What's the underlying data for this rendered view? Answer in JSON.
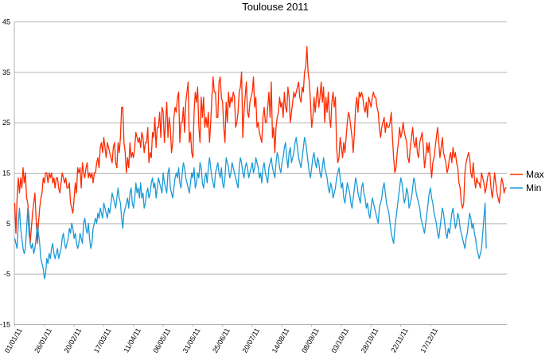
{
  "chart_data": {
    "type": "line",
    "title": "Toulouse  2011",
    "xlabel": "",
    "ylabel": "",
    "ylim": [
      -15,
      45
    ],
    "yticks": [
      -15,
      -5,
      5,
      15,
      25,
      35,
      45
    ],
    "x_start": "01/01/11",
    "x_tick_labels": [
      "01/01/11",
      "26/01/11",
      "20/02/11",
      "17/03/11",
      "11/04/11",
      "06/05/11",
      "31/05/11",
      "25/06/11",
      "20/07/11",
      "14/08/11",
      "08/09/11",
      "03/10/11",
      "28/10/11",
      "22/11/11",
      "17/12/11"
    ],
    "grid": "horizontal",
    "legend_position": "right",
    "series": [
      {
        "name": "Max",
        "color": "#ff2a00",
        "values": [
          9,
          3,
          10,
          14,
          11,
          14,
          12,
          16,
          13,
          15,
          10,
          9,
          6,
          1,
          4,
          7,
          9,
          11,
          6,
          1,
          5,
          8,
          10,
          11,
          14,
          13,
          15,
          15,
          13,
          15,
          14,
          15,
          13,
          14,
          12,
          14,
          14,
          12,
          11,
          13,
          15,
          14,
          13,
          14,
          12,
          12,
          13,
          9,
          8,
          7,
          10,
          13,
          11,
          16,
          15,
          16,
          12,
          17,
          15,
          14,
          16,
          17,
          14,
          15,
          14,
          15,
          13,
          15,
          15,
          17,
          18,
          16,
          20,
          21,
          19,
          22,
          20,
          18,
          21,
          20,
          19,
          18,
          17,
          20,
          21,
          17,
          16,
          21,
          19,
          22,
          28,
          28,
          21,
          19,
          15,
          18,
          16,
          21,
          18,
          19,
          18,
          20,
          23,
          22,
          21,
          22,
          20,
          23,
          22,
          19,
          21,
          21,
          24,
          17,
          19,
          18,
          23,
          22,
          26,
          20,
          24,
          24,
          27,
          22,
          28,
          27,
          21,
          25,
          29,
          22,
          26,
          24,
          19,
          21,
          26,
          28,
          27,
          30,
          31,
          21,
          25,
          25,
          28,
          23,
          29,
          31,
          33,
          21,
          23,
          19,
          18,
          27,
          31,
          29,
          32,
          24,
          21,
          30,
          26,
          30,
          24,
          26,
          24,
          27,
          21,
          25,
          30,
          34,
          31,
          31,
          26,
          26,
          33,
          34,
          30,
          29,
          24,
          21,
          29,
          25,
          31,
          28,
          30,
          29,
          31,
          30,
          24,
          25,
          27,
          31,
          32,
          35,
          22,
          27,
          30,
          33,
          27,
          26,
          29,
          30,
          31,
          34,
          28,
          30,
          24,
          25,
          23,
          22,
          21,
          26,
          28,
          25,
          25,
          28,
          31,
          26,
          33,
          22,
          24,
          19,
          24,
          26,
          27,
          30,
          28,
          29,
          26,
          31,
          28,
          27,
          32,
          30,
          25,
          27,
          29,
          31,
          30,
          31,
          32,
          33,
          30,
          29,
          32,
          31,
          35,
          36,
          40,
          35,
          33,
          29,
          24,
          26,
          30,
          27,
          30,
          32,
          28,
          30,
          33,
          29,
          32,
          25,
          30,
          27,
          31,
          26,
          24,
          29,
          31,
          28,
          30,
          20,
          17,
          18,
          22,
          20,
          18,
          21,
          19,
          22,
          25,
          27,
          26,
          24,
          22,
          19,
          23,
          28,
          30,
          27,
          31,
          30,
          31,
          30,
          28,
          27,
          29,
          26,
          30,
          29,
          28,
          30,
          31,
          30,
          30,
          28,
          27,
          24,
          22,
          24,
          25,
          26,
          23,
          25,
          24,
          24,
          25,
          27,
          22,
          18,
          15,
          16,
          19,
          21,
          24,
          22,
          23,
          25,
          23,
          22,
          21,
          18,
          17,
          20,
          22,
          24,
          21,
          20,
          22,
          19,
          18,
          21,
          22,
          23,
          20,
          16,
          18,
          21,
          19,
          21,
          17,
          14,
          17,
          18,
          20,
          22,
          24,
          21,
          18,
          20,
          22,
          19,
          18,
          17,
          15,
          16,
          18,
          19,
          17,
          20,
          18,
          19,
          17,
          16,
          13,
          12,
          9,
          8,
          9,
          15,
          17,
          18,
          19,
          18,
          15,
          14,
          17,
          14,
          12,
          14,
          13,
          13,
          12,
          15,
          14,
          13,
          11,
          12,
          14,
          15,
          15,
          12,
          10,
          12,
          15,
          13,
          11,
          10,
          9,
          12,
          14,
          13,
          11,
          12,
          12
        ]
      },
      {
        "name": "Min",
        "color": "#1b9ad6",
        "values": [
          2,
          1,
          0,
          5,
          8,
          4,
          2,
          0,
          -1,
          0,
          4,
          8,
          3,
          1,
          0,
          1,
          -1,
          0,
          2,
          5,
          3,
          1,
          -2,
          -3,
          -4,
          -6,
          -5,
          -2,
          -3,
          -1,
          -2,
          0,
          1,
          -1,
          -2,
          -1,
          0,
          -2,
          -1,
          0,
          2,
          3,
          1,
          0,
          1,
          2,
          4,
          3,
          5,
          4,
          2,
          3,
          1,
          0,
          1,
          3,
          2,
          1,
          5,
          6,
          4,
          3,
          5,
          2,
          0,
          1,
          4,
          5,
          6,
          5,
          7,
          6,
          8,
          7,
          6,
          9,
          8,
          7,
          6,
          8,
          7,
          9,
          11,
          10,
          9,
          8,
          10,
          12,
          10,
          9,
          6,
          4,
          7,
          8,
          9,
          10,
          8,
          11,
          12,
          9,
          8,
          10,
          13,
          11,
          12,
          10,
          13,
          10,
          11,
          8,
          9,
          11,
          12,
          10,
          11,
          13,
          14,
          12,
          13,
          10,
          12,
          14,
          13,
          12,
          11,
          15,
          13,
          12,
          11,
          15,
          16,
          12,
          11,
          10,
          12,
          14,
          15,
          14,
          16,
          13,
          12,
          15,
          17,
          16,
          14,
          13,
          12,
          11,
          13,
          15,
          14,
          16,
          12,
          13,
          15,
          14,
          17,
          16,
          13,
          12,
          14,
          15,
          13,
          16,
          18,
          16,
          14,
          13,
          12,
          15,
          16,
          17,
          15,
          14,
          16,
          13,
          12,
          14,
          18,
          17,
          16,
          14,
          15,
          17,
          16,
          15,
          14,
          13,
          12,
          16,
          18,
          17,
          15,
          14,
          16,
          17,
          16,
          14,
          15,
          16,
          17,
          15,
          16,
          18,
          17,
          16,
          14,
          15,
          13,
          16,
          17,
          15,
          14,
          13,
          16,
          17,
          18,
          16,
          15,
          14,
          17,
          19,
          18,
          16,
          15,
          17,
          18,
          20,
          21,
          18,
          16,
          19,
          20,
          17,
          18,
          19,
          21,
          22,
          20,
          18,
          17,
          16,
          18,
          20,
          22,
          21,
          19,
          17,
          15,
          14,
          16,
          18,
          19,
          17,
          16,
          18,
          17,
          15,
          14,
          16,
          18,
          16,
          15,
          14,
          12,
          11,
          13,
          12,
          10,
          11,
          12,
          14,
          15,
          16,
          14,
          12,
          13,
          10,
          9,
          11,
          13,
          12,
          11,
          9,
          8,
          10,
          12,
          14,
          13,
          11,
          10,
          9,
          12,
          13,
          11,
          10,
          8,
          9,
          7,
          6,
          8,
          10,
          9,
          8,
          7,
          6,
          5,
          8,
          9,
          10,
          12,
          13,
          11,
          9,
          8,
          7,
          5,
          3,
          2,
          1,
          4,
          6,
          8,
          10,
          12,
          14,
          13,
          11,
          9,
          10,
          12,
          11,
          8,
          9,
          10,
          12,
          14,
          13,
          11,
          10,
          9,
          8,
          6,
          5,
          4,
          3,
          5,
          7,
          9,
          11,
          12,
          10,
          9,
          7,
          6,
          5,
          3,
          2,
          4,
          6,
          8,
          7,
          5,
          3,
          2,
          4,
          3,
          5,
          7,
          8,
          6,
          4,
          5,
          7,
          6,
          4,
          3,
          2,
          1,
          0,
          2,
          3,
          5,
          7,
          6,
          4,
          5,
          3,
          2,
          0,
          -1,
          -2,
          -1,
          0,
          3,
          6,
          9,
          0
        ]
      }
    ]
  }
}
